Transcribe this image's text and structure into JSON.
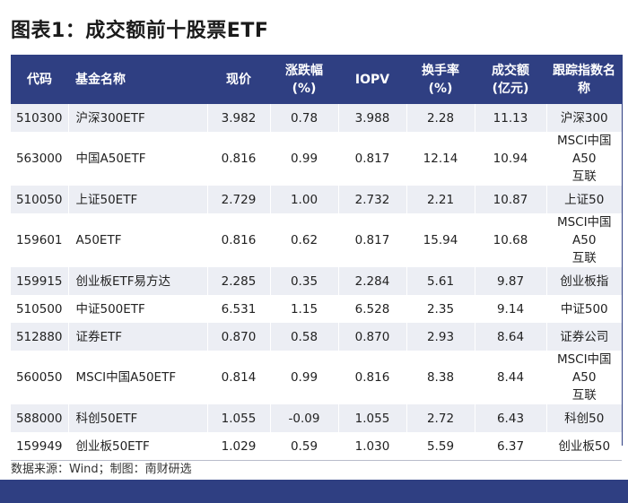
{
  "title": "图表1：成交额前十股票ETF",
  "headers": {
    "code": "代码",
    "name": "基金名称",
    "price_line1": "现价",
    "change_line1": "涨跌幅",
    "change_line2": "(%)",
    "iopv": "IOPV",
    "turnover_line1": "换手率",
    "turnover_line2": "(%)",
    "volume_line1": "成交额",
    "volume_line2": "(亿元)",
    "index": "跟踪指数名称"
  },
  "rows": [
    {
      "code": "510300",
      "name": "沪深300ETF",
      "price": "3.982",
      "change": "0.78",
      "iopv": "3.988",
      "turnover": "2.28",
      "volume": "11.13",
      "index1": "沪深300",
      "index2": ""
    },
    {
      "code": "563000",
      "name": "中国A50ETF",
      "price": "0.816",
      "change": "0.99",
      "iopv": "0.817",
      "turnover": "12.14",
      "volume": "10.94",
      "index1": "MSCI中国A50",
      "index2": "互联"
    },
    {
      "code": "510050",
      "name": "上证50ETF",
      "price": "2.729",
      "change": "1.00",
      "iopv": "2.732",
      "turnover": "2.21",
      "volume": "10.87",
      "index1": "上证50",
      "index2": ""
    },
    {
      "code": "159601",
      "name": "A50ETF",
      "price": "0.816",
      "change": "0.62",
      "iopv": "0.817",
      "turnover": "15.94",
      "volume": "10.68",
      "index1": "MSCI中国A50",
      "index2": "互联"
    },
    {
      "code": "159915",
      "name": "创业板ETF易方达",
      "price": "2.285",
      "change": "0.35",
      "iopv": "2.284",
      "turnover": "5.61",
      "volume": "9.87",
      "index1": "创业板指",
      "index2": ""
    },
    {
      "code": "510500",
      "name": "中证500ETF",
      "price": "6.531",
      "change": "1.15",
      "iopv": "6.528",
      "turnover": "2.35",
      "volume": "9.14",
      "index1": "中证500",
      "index2": ""
    },
    {
      "code": "512880",
      "name": "证券ETF",
      "price": "0.870",
      "change": "0.58",
      "iopv": "0.870",
      "turnover": "2.93",
      "volume": "8.64",
      "index1": "证券公司",
      "index2": ""
    },
    {
      "code": "560050",
      "name": "MSCI中国A50ETF",
      "price": "0.814",
      "change": "0.99",
      "iopv": "0.816",
      "turnover": "8.38",
      "volume": "8.44",
      "index1": "MSCI中国A50",
      "index2": "互联"
    },
    {
      "code": "588000",
      "name": "科创50ETF",
      "price": "1.055",
      "change": "-0.09",
      "iopv": "1.055",
      "turnover": "2.72",
      "volume": "6.43",
      "index1": "科创50",
      "index2": ""
    },
    {
      "code": "159949",
      "name": "创业板50ETF",
      "price": "1.029",
      "change": "0.59",
      "iopv": "1.030",
      "turnover": "5.59",
      "volume": "6.37",
      "index1": "创业板50",
      "index2": ""
    }
  ],
  "source": "数据来源：Wind；制图：南财研选",
  "colors": {
    "header_bg": "#2f3f82",
    "row_stripe": "#eceef4"
  }
}
